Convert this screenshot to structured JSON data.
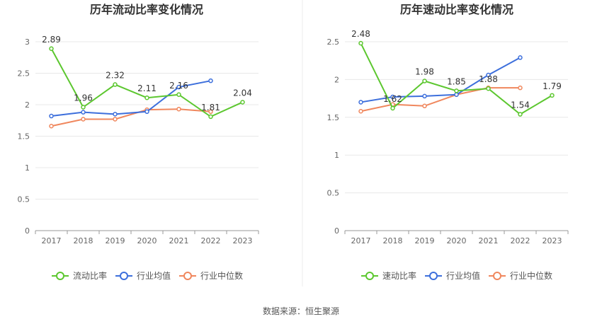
{
  "footer": {
    "source": "数据来源：恒生聚源"
  },
  "colors": {
    "company": "#5cc72f",
    "industry_avg": "#3d6fdc",
    "industry_median": "#f0875d",
    "grid": "#e8e8e8",
    "axis": "#999999"
  },
  "chart_data": [
    {
      "type": "line",
      "title": "历年流动比率变化情况",
      "categories": [
        "2017",
        "2018",
        "2019",
        "2020",
        "2021",
        "2022",
        "2023"
      ],
      "yticks": [
        "0",
        "0.5",
        "1",
        "1.5",
        "2",
        "2.5",
        "3"
      ],
      "ylim": [
        0,
        3
      ],
      "grid": true,
      "legend_position": "bottom",
      "series": [
        {
          "name": "流动比率",
          "values": [
            2.89,
            1.96,
            2.32,
            2.11,
            2.16,
            1.81,
            2.04
          ],
          "labels": [
            "2.89",
            "1.96",
            "2.32",
            "2.11",
            "2.16",
            "1.81",
            "2.04"
          ]
        },
        {
          "name": "行业均值",
          "values": [
            1.82,
            1.88,
            1.85,
            1.89,
            2.28,
            2.38,
            null
          ]
        },
        {
          "name": "行业中位数",
          "values": [
            1.66,
            1.77,
            1.77,
            1.92,
            1.93,
            1.89,
            null
          ]
        }
      ]
    },
    {
      "type": "line",
      "title": "历年速动比率变化情况",
      "categories": [
        "2017",
        "2018",
        "2019",
        "2020",
        "2021",
        "2022",
        "2023"
      ],
      "yticks": [
        "0",
        "0.5",
        "1",
        "1.5",
        "2",
        "2.5"
      ],
      "ylim": [
        0,
        2.5
      ],
      "grid": true,
      "legend_position": "bottom",
      "series": [
        {
          "name": "速动比率",
          "values": [
            2.48,
            1.62,
            1.98,
            1.85,
            1.88,
            1.54,
            1.79
          ],
          "labels": [
            "2.48",
            "1.62",
            "1.98",
            "1.85",
            "1.88",
            "1.54",
            "1.79"
          ]
        },
        {
          "name": "行业均值",
          "values": [
            1.7,
            1.77,
            1.78,
            1.8,
            2.06,
            2.29,
            null
          ]
        },
        {
          "name": "行业中位数",
          "values": [
            1.58,
            1.67,
            1.65,
            1.8,
            1.89,
            1.89,
            null
          ]
        }
      ]
    }
  ]
}
